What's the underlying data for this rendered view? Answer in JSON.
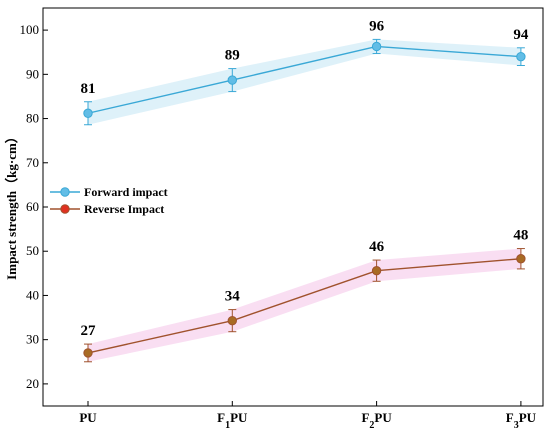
{
  "chart_data": {
    "type": "line",
    "categories": [
      "PU",
      "F1PU",
      "F2PU",
      "F3PU"
    ],
    "category_labels": [
      {
        "main": "PU",
        "sub": ""
      },
      {
        "main": "F",
        "sub": "1",
        "rest": "PU"
      },
      {
        "main": "F",
        "sub": "2",
        "rest": "PU"
      },
      {
        "main": "F",
        "sub": "3",
        "rest": "PU"
      }
    ],
    "ylabel": "Impact strength（kg·cm）",
    "xlabel": "",
    "ylim": [
      15,
      105
    ],
    "yticks": [
      20,
      30,
      40,
      50,
      60,
      70,
      80,
      90,
      100
    ],
    "grid": false,
    "legend_position": "center-left",
    "series": [
      {
        "name": "Forward impact",
        "values": [
          81.2,
          88.7,
          96.3,
          94.0
        ],
        "error": [
          2.6,
          2.6,
          1.6,
          2.0
        ],
        "labels": [
          "81",
          "89",
          "96",
          "94"
        ],
        "color": "#3aa8d6",
        "marker_fill": "#62bde6",
        "band_color": "#d6eef8"
      },
      {
        "name": "Reverse Impact",
        "values": [
          27.0,
          34.3,
          45.6,
          48.3
        ],
        "error": [
          2.0,
          2.5,
          2.4,
          2.3
        ],
        "labels": [
          "27",
          "34",
          "46",
          "48"
        ],
        "color": "#a0522d",
        "marker_fill": "#a86b24",
        "band_color": "#f7d6ef",
        "legend_marker_fill": "#e03020"
      }
    ]
  }
}
